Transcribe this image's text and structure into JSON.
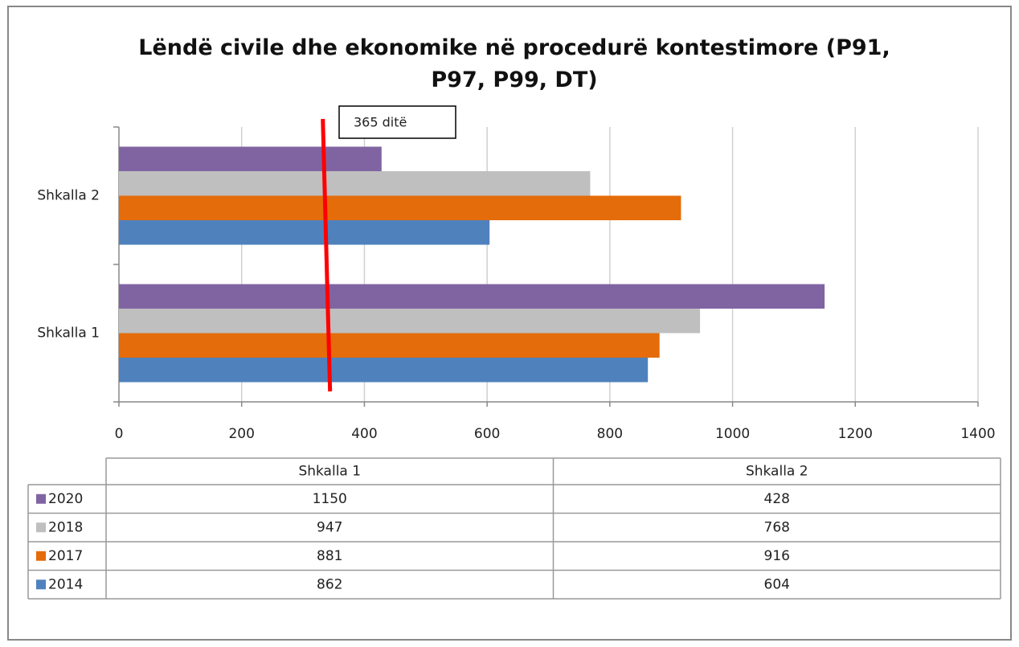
{
  "chart_data": {
    "type": "hbar",
    "title": "Lëndë civile dhe ekonomike në procedurë kontestimore (P91, P97, P99, DT)",
    "categories": [
      "Shkalla 1",
      "Shkalla 2"
    ],
    "series": [
      {
        "name": "2014",
        "color": "#4f81bd",
        "values": [
          862,
          604
        ]
      },
      {
        "name": "2017",
        "color": "#e46c0a",
        "values": [
          881,
          916
        ]
      },
      {
        "name": "2018",
        "color": "#bfbfbf",
        "values": [
          947,
          768
        ]
      },
      {
        "name": "2020",
        "color": "#8064a2",
        "values": [
          1150,
          428
        ]
      }
    ],
    "xlim": [
      0,
      1400
    ],
    "xticks": [
      0,
      200,
      400,
      600,
      800,
      1000,
      1200,
      1400
    ],
    "grid": true,
    "reference_line": {
      "value": 365,
      "label": "365 ditë",
      "color": "#ff0000"
    },
    "data_table": true
  }
}
